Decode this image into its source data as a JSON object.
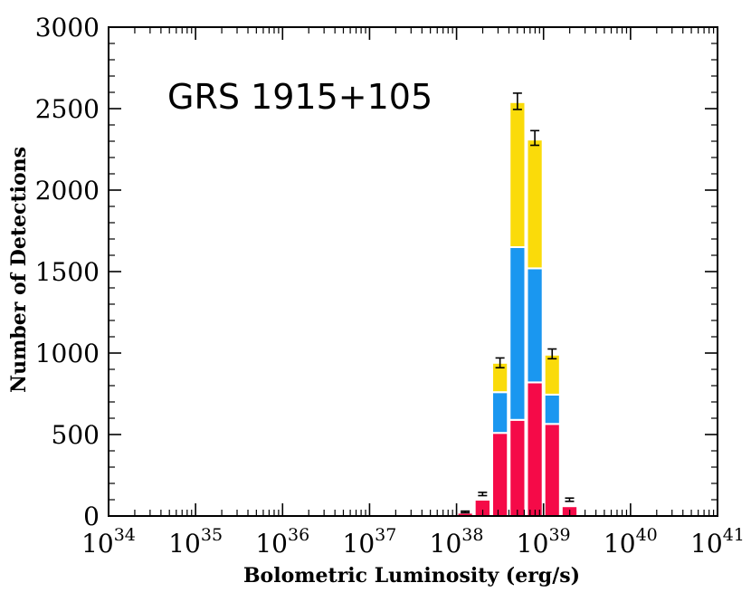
{
  "chart_data": {
    "type": "bar",
    "stacked": true,
    "annotation": "GRS 1915+105",
    "xlabel": "Bolometric Luminosity (erg/s)",
    "ylabel": "Number of Detections",
    "x_scale": "log",
    "xlim": [
      1e+34,
      1e+41
    ],
    "ylim": [
      0,
      3000
    ],
    "y_ticks": [
      0,
      500,
      1000,
      1500,
      2000,
      2500,
      3000
    ],
    "x_ticks": [
      {
        "base": "10",
        "exp": "34"
      },
      {
        "base": "10",
        "exp": "35"
      },
      {
        "base": "10",
        "exp": "36"
      },
      {
        "base": "10",
        "exp": "37"
      },
      {
        "base": "10",
        "exp": "38"
      },
      {
        "base": "10",
        "exp": "39"
      },
      {
        "base": "10",
        "exp": "40"
      },
      {
        "base": "10",
        "exp": "41"
      }
    ],
    "bin_edges_erg_s": [
      1e+38,
      1.58e+38,
      2.51e+38,
      3.98e+38,
      6.31e+38,
      1e+39,
      1.58e+39,
      2.51e+39,
      3.98e+39
    ],
    "series": [
      {
        "color": "#f50a48",
        "values": [
          20,
          100,
          510,
          590,
          820,
          565,
          60,
          0
        ]
      },
      {
        "color": "#1a97f0",
        "values": [
          0,
          0,
          250,
          1060,
          700,
          180,
          0,
          0
        ]
      },
      {
        "color": "#fadb0a",
        "values": [
          0,
          0,
          180,
          890,
          790,
          245,
          0,
          0
        ]
      }
    ],
    "totals": [
      20,
      100,
      940,
      2540,
      2310,
      990,
      60,
      0
    ],
    "error_bars": [
      {
        "bin": 0,
        "center": 25,
        "err": 5
      },
      {
        "bin": 1,
        "center": 135,
        "err": 10
      },
      {
        "bin": 2,
        "center": 940,
        "err": 30
      },
      {
        "bin": 3,
        "center": 2545,
        "err": 50
      },
      {
        "bin": 4,
        "center": 2320,
        "err": 45
      },
      {
        "bin": 5,
        "center": 995,
        "err": 30
      },
      {
        "bin": 6,
        "center": 100,
        "err": 10
      }
    ],
    "grid": false,
    "legend": "none",
    "colors": {
      "bar_edge": "#ffffff",
      "axis": "#000000",
      "error_bar": "#000000"
    }
  }
}
